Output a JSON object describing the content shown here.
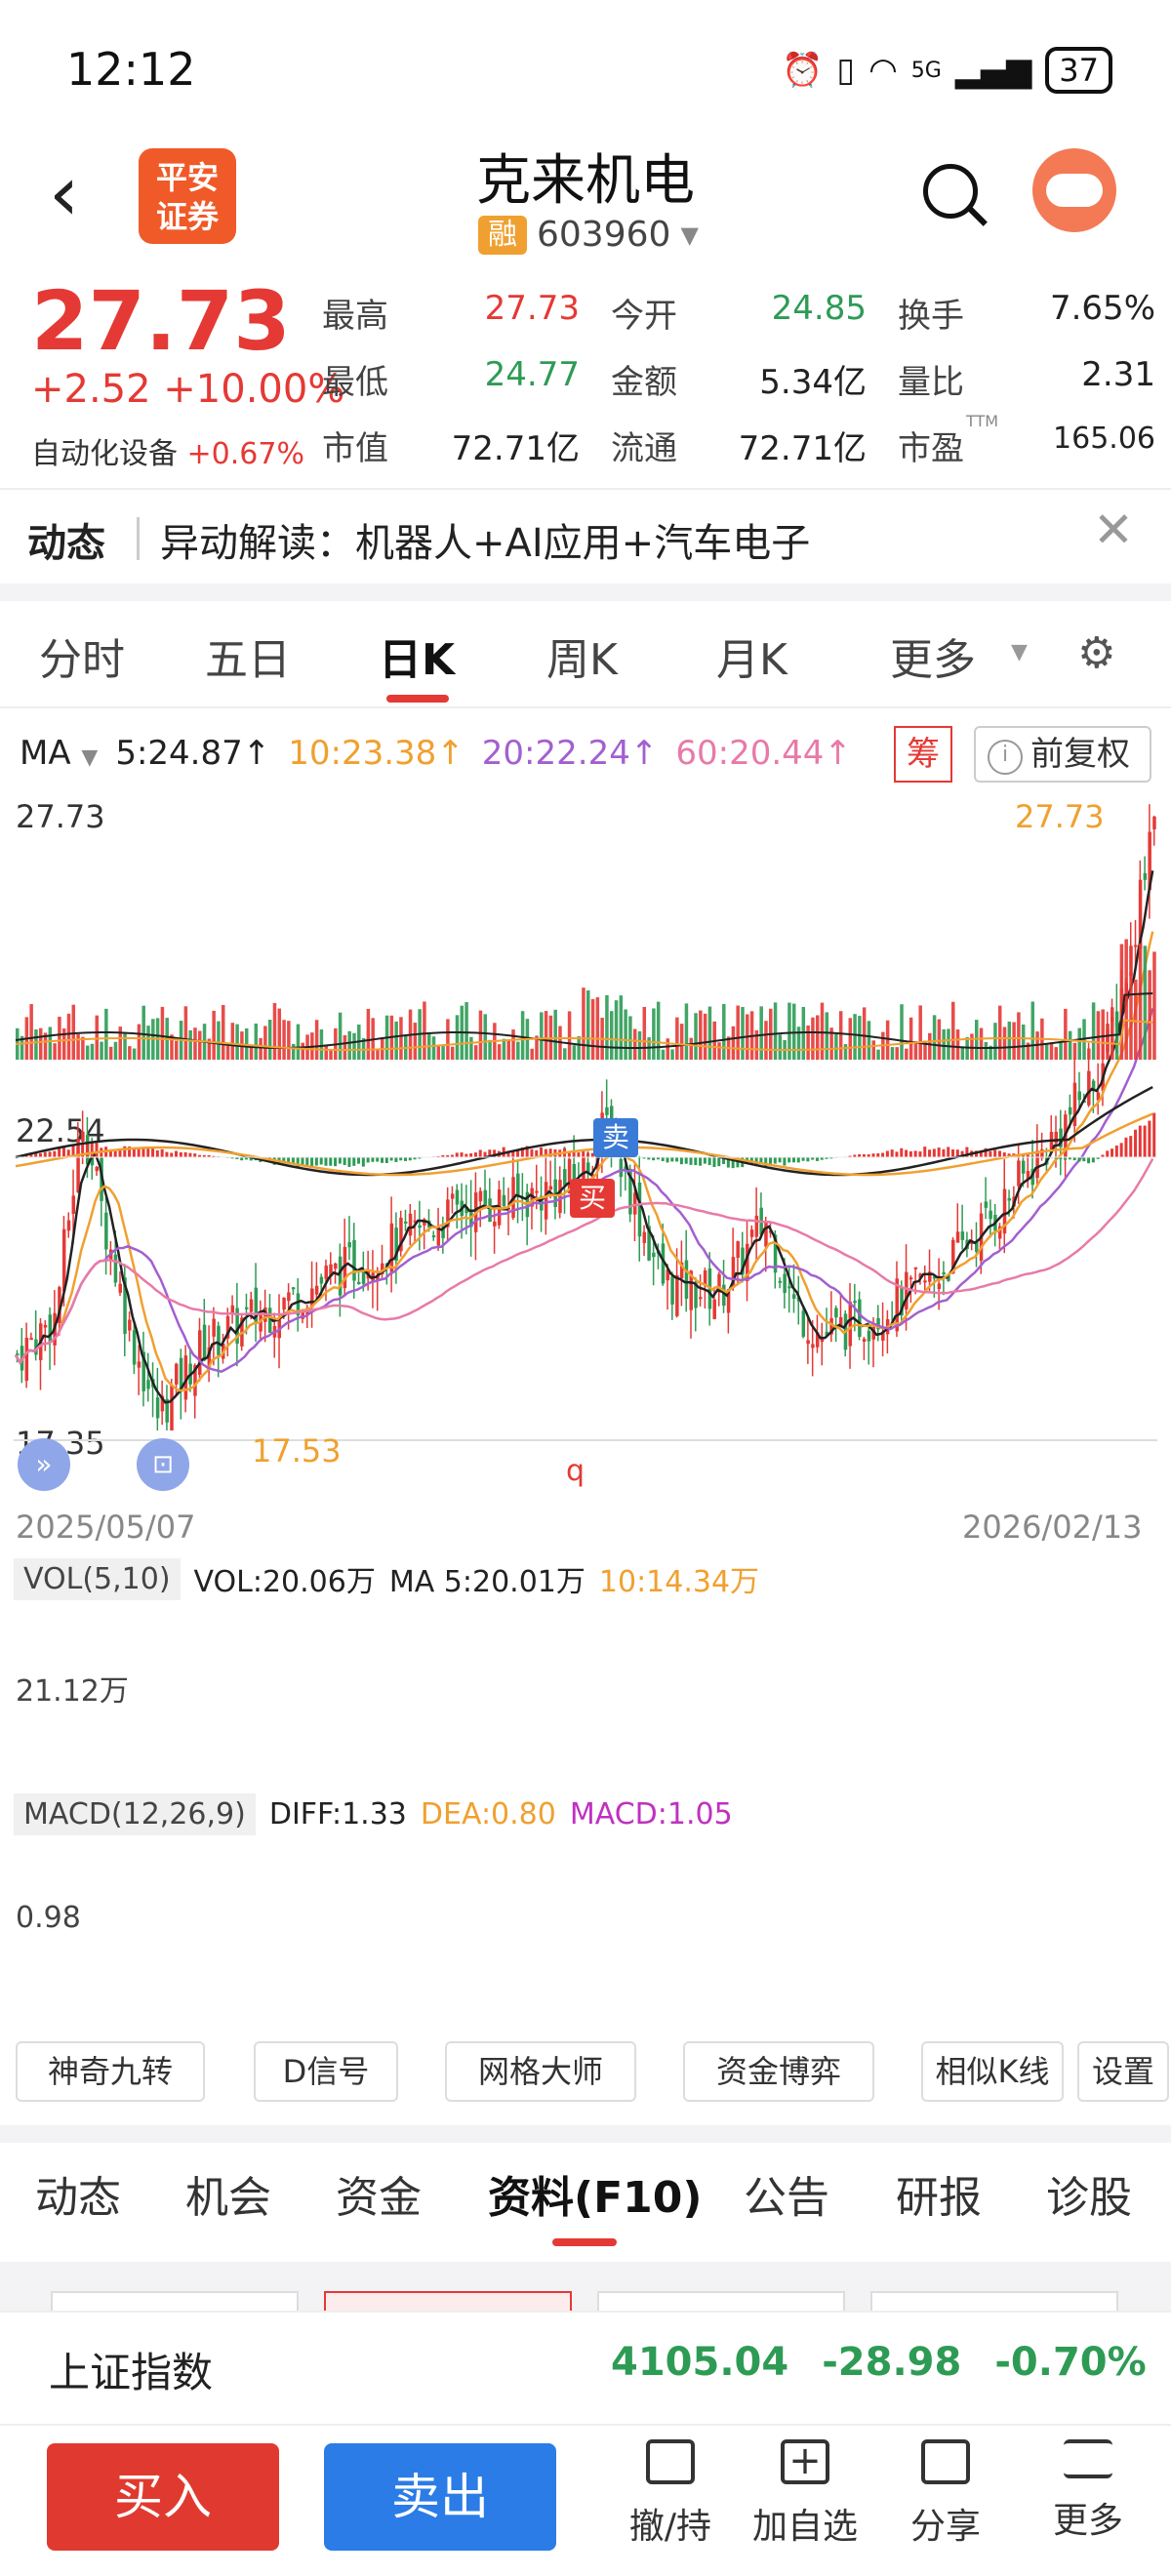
{
  "status_bar": {
    "time": "12:12",
    "network": "5G",
    "battery": "37"
  },
  "header": {
    "stock_name": "克来机电",
    "margin_badge": "融",
    "stock_code": "603960",
    "logo_text": "平安\n证券"
  },
  "quote": {
    "price": "27.73",
    "change": "+2.52 +10.00%",
    "sector_label": "自动化设备",
    "sector_change": "+0.67%",
    "rows": [
      [
        {
          "label": "最高",
          "value": "27.73",
          "color": "#e53935"
        },
        {
          "label": "今开",
          "value": "24.85",
          "color": "#2e9b55"
        },
        {
          "label": "换手",
          "value": "7.65%",
          "color": "#222"
        }
      ],
      [
        {
          "label": "最低",
          "value": "24.77",
          "color": "#2e9b55"
        },
        {
          "label": "金额",
          "value": "5.34亿",
          "color": "#222"
        },
        {
          "label": "量比",
          "value": "2.31",
          "color": "#222"
        }
      ],
      [
        {
          "label": "市值",
          "value": "72.71亿",
          "color": "#222"
        },
        {
          "label": "流通",
          "value": "72.71亿",
          "color": "#222"
        },
        {
          "label": "市盈",
          "value": "165.06",
          "color": "#222",
          "sup": "TTM"
        }
      ]
    ]
  },
  "news": {
    "label": "动态",
    "text": "异动解读：机器人+AI应用+汽车电子"
  },
  "chart_tabs": [
    "分时",
    "五日",
    "日K",
    "周K",
    "月K",
    "更多"
  ],
  "active_chart_tab": "日K",
  "ma": {
    "label": "MA",
    "ma5": "5:24.87↑",
    "ma10": "10:23.38↑",
    "ma20": "20:22.24↑",
    "ma60": "60:20.44↑"
  },
  "chart_controls": {
    "chips": "筹",
    "adjust": "前复权"
  },
  "kline": {
    "y_high": "27.73",
    "y_mid": "22.54",
    "y_low": "17.35",
    "high_marker": "27.73",
    "low_marker": "17.53",
    "start_date": "2025/05/07",
    "end_date": "2026/02/13",
    "buy_tag": "买",
    "sell_tag": "卖",
    "event_q": "q"
  },
  "vol": {
    "label": "VOL(5,10)",
    "vol": "VOL:20.06万",
    "ma5": "MA 5:20.01万",
    "ma10": "10:14.34万",
    "axis": "21.12万"
  },
  "macd": {
    "label": "MACD(12,26,9)",
    "diff": "DIFF:1.33",
    "dea": "DEA:0.80",
    "macd": "MACD:1.05",
    "axis": "0.98"
  },
  "tools": [
    "神奇九转",
    "D信号",
    "网格大师",
    "资金博弈",
    "相似K线",
    "设置"
  ],
  "bottom_tabs": [
    "动态",
    "机会",
    "资金",
    "资料(F10)",
    "公告",
    "研报",
    "诊股"
  ],
  "active_bottom_tab": "资料(F10)",
  "index_bar": {
    "name": "上证指数",
    "value": "4105.04",
    "change": "-28.98",
    "pct": "-0.70%"
  },
  "actions": {
    "buy": "买入",
    "sell": "卖出",
    "items": [
      "撤/持",
      "加自选",
      "分享",
      "更多"
    ]
  },
  "colors": {
    "up": "#e53935",
    "down": "#2e9b55",
    "ma5": "#222222",
    "ma10": "#f0a030",
    "ma20": "#a35fd0",
    "ma60": "#e87aa8"
  }
}
